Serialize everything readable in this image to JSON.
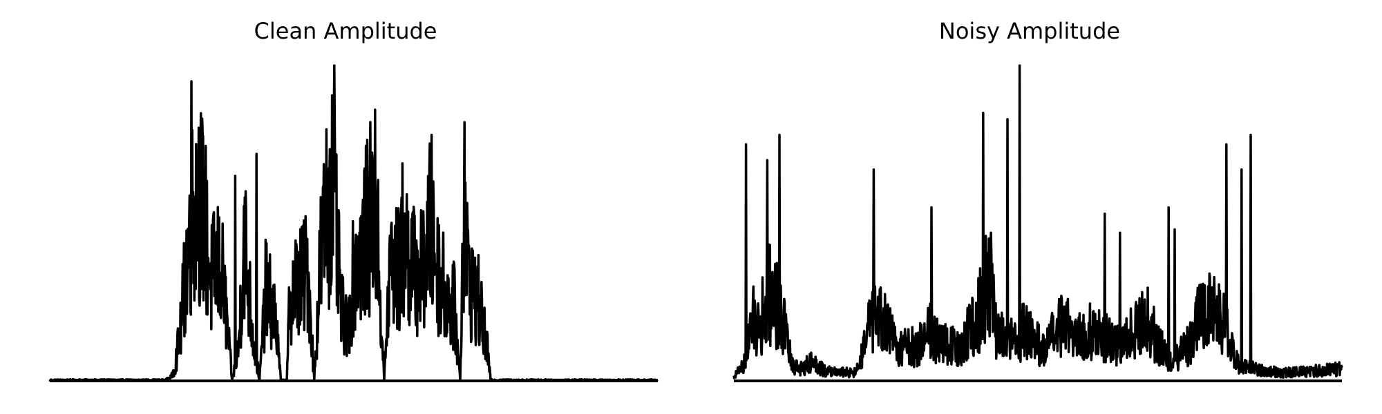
{
  "chart_data": [
    {
      "type": "line",
      "title": "Clean Amplitude",
      "axes_visible": false,
      "color": "#000000",
      "ylim": [
        0,
        1.0
      ],
      "envelope": [
        [
          0,
          0.005
        ],
        [
          0.19,
          0.005
        ],
        [
          0.2,
          0.02
        ],
        [
          0.205,
          0.06
        ],
        [
          0.215,
          0.25
        ],
        [
          0.225,
          0.6
        ],
        [
          0.235,
          0.86
        ],
        [
          0.245,
          0.95
        ],
        [
          0.255,
          0.8
        ],
        [
          0.265,
          0.5
        ],
        [
          0.275,
          0.6
        ],
        [
          0.285,
          0.5
        ],
        [
          0.3,
          0.005
        ],
        [
          0.31,
          0.15
        ],
        [
          0.32,
          0.72
        ],
        [
          0.335,
          0.2
        ],
        [
          0.345,
          0.005
        ],
        [
          0.355,
          0.45
        ],
        [
          0.37,
          0.35
        ],
        [
          0.38,
          0.005
        ],
        [
          0.39,
          0.005
        ],
        [
          0.395,
          0.45
        ],
        [
          0.41,
          0.5
        ],
        [
          0.425,
          0.55
        ],
        [
          0.435,
          0.005
        ],
        [
          0.445,
          0.6
        ],
        [
          0.455,
          0.85
        ],
        [
          0.465,
          1.0
        ],
        [
          0.48,
          0.35
        ],
        [
          0.49,
          0.25
        ],
        [
          0.5,
          0.55
        ],
        [
          0.515,
          0.7
        ],
        [
          0.53,
          0.85
        ],
        [
          0.54,
          0.65
        ],
        [
          0.55,
          0.005
        ],
        [
          0.56,
          0.6
        ],
        [
          0.575,
          0.55
        ],
        [
          0.585,
          0.68
        ],
        [
          0.6,
          0.55
        ],
        [
          0.615,
          0.55
        ],
        [
          0.625,
          0.78
        ],
        [
          0.64,
          0.55
        ],
        [
          0.655,
          0.4
        ],
        [
          0.665,
          0.38
        ],
        [
          0.675,
          0.005
        ],
        [
          0.68,
          0.82
        ],
        [
          0.69,
          0.5
        ],
        [
          0.705,
          0.4
        ],
        [
          0.72,
          0.15
        ],
        [
          0.725,
          0.005
        ],
        [
          1.0,
          0.005
        ]
      ],
      "spikes": [
        [
          0.233,
          0.95
        ],
        [
          0.305,
          0.65
        ],
        [
          0.34,
          0.72
        ],
        [
          0.468,
          1.0
        ],
        [
          0.535,
          0.86
        ],
        [
          0.58,
          0.69
        ],
        [
          0.628,
          0.78
        ],
        [
          0.682,
          0.82
        ]
      ]
    },
    {
      "type": "line",
      "title": "Noisy Amplitude",
      "axes_visible": false,
      "color": "#000000",
      "ylim": [
        0,
        1.0
      ],
      "envelope": [
        [
          0,
          0.02
        ],
        [
          0.02,
          0.1
        ],
        [
          0.03,
          0.3
        ],
        [
          0.045,
          0.3
        ],
        [
          0.055,
          0.45
        ],
        [
          0.07,
          0.4
        ],
        [
          0.085,
          0.25
        ],
        [
          0.095,
          0.08
        ],
        [
          0.11,
          0.06
        ],
        [
          0.13,
          0.1
        ],
        [
          0.15,
          0.05
        ],
        [
          0.2,
          0.04
        ],
        [
          0.21,
          0.12
        ],
        [
          0.225,
          0.3
        ],
        [
          0.24,
          0.32
        ],
        [
          0.255,
          0.25
        ],
        [
          0.27,
          0.15
        ],
        [
          0.285,
          0.2
        ],
        [
          0.3,
          0.15
        ],
        [
          0.32,
          0.28
        ],
        [
          0.34,
          0.18
        ],
        [
          0.355,
          0.2
        ],
        [
          0.37,
          0.15
        ],
        [
          0.385,
          0.25
        ],
        [
          0.4,
          0.3
        ],
        [
          0.42,
          0.55
        ],
        [
          0.43,
          0.28
        ],
        [
          0.445,
          0.2
        ],
        [
          0.46,
          0.2
        ],
        [
          0.475,
          0.25
        ],
        [
          0.49,
          0.22
        ],
        [
          0.51,
          0.15
        ],
        [
          0.53,
          0.25
        ],
        [
          0.55,
          0.3
        ],
        [
          0.565,
          0.22
        ],
        [
          0.58,
          0.25
        ],
        [
          0.6,
          0.25
        ],
        [
          0.62,
          0.2
        ],
        [
          0.64,
          0.18
        ],
        [
          0.66,
          0.28
        ],
        [
          0.68,
          0.3
        ],
        [
          0.7,
          0.18
        ],
        [
          0.72,
          0.08
        ],
        [
          0.75,
          0.2
        ],
        [
          0.77,
          0.35
        ],
        [
          0.79,
          0.4
        ],
        [
          0.81,
          0.25
        ],
        [
          0.83,
          0.08
        ],
        [
          0.86,
          0.06
        ],
        [
          0.9,
          0.04
        ],
        [
          0.95,
          0.05
        ],
        [
          1.0,
          0.06
        ]
      ],
      "spikes": [
        [
          0.02,
          0.75
        ],
        [
          0.055,
          0.7
        ],
        [
          0.075,
          0.78
        ],
        [
          0.23,
          0.67
        ],
        [
          0.325,
          0.55
        ],
        [
          0.41,
          0.85
        ],
        [
          0.45,
          0.83
        ],
        [
          0.47,
          1.0
        ],
        [
          0.61,
          0.53
        ],
        [
          0.635,
          0.47
        ],
        [
          0.715,
          0.55
        ],
        [
          0.725,
          0.48
        ],
        [
          0.81,
          0.75
        ],
        [
          0.835,
          0.67
        ],
        [
          0.85,
          0.78
        ]
      ]
    }
  ]
}
